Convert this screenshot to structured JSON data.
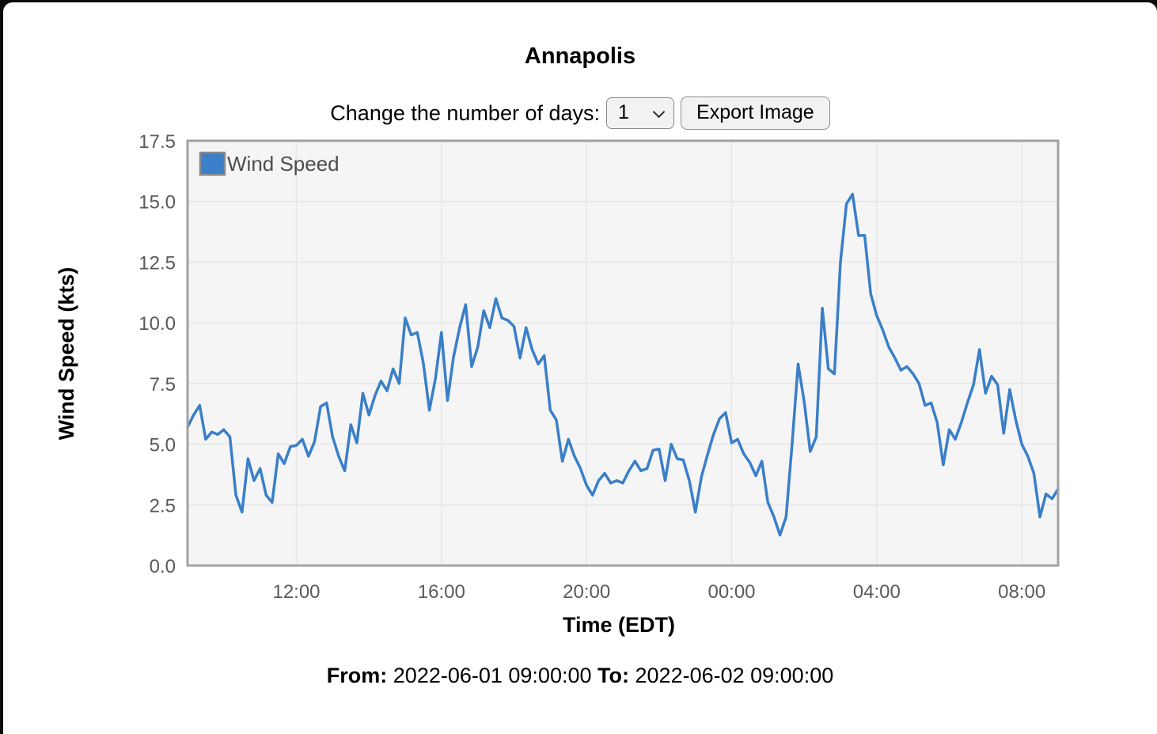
{
  "header": {
    "title": "Annapolis"
  },
  "controls": {
    "label": "Change the number of days:",
    "days_selected": "1",
    "export_button_label": "Export Image"
  },
  "footer": {
    "from_label": "From:",
    "from_value": "2022-06-01 09:00:00",
    "to_label": "To:",
    "to_value": "2022-06-02 09:00:00"
  },
  "colors": {
    "line": "#3a7fc8",
    "plot_background": "#f5f5f5",
    "grid": "#e7e7e7",
    "plot_border": "#a2a2a2",
    "tick_label": "#5a5a5a",
    "legend_text": "#4d4d4d",
    "legend_swatch_border": "#8a8a8a"
  },
  "chart_data": {
    "type": "line",
    "title": "Annapolis",
    "xlabel": "Time (EDT)",
    "ylabel": "Wind Speed (kts)",
    "legend": [
      "Wind Speed"
    ],
    "legend_position": "top-left",
    "grid": true,
    "ylim": [
      0,
      17.5
    ],
    "x_range_hours": 24,
    "y_ticks": [
      {
        "value": 17.5,
        "label": "17.5"
      },
      {
        "value": 15.0,
        "label": "15.0"
      },
      {
        "value": 12.5,
        "label": "12.5"
      },
      {
        "value": 10.0,
        "label": "10.0"
      },
      {
        "value": 7.5,
        "label": "7.5"
      },
      {
        "value": 5.0,
        "label": "5.0"
      },
      {
        "value": 2.5,
        "label": "2.5"
      },
      {
        "value": 0.0,
        "label": "0.0"
      }
    ],
    "x_ticks": [
      {
        "label": "12:00",
        "hour_offset": 3
      },
      {
        "label": "16:00",
        "hour_offset": 7
      },
      {
        "label": "20:00",
        "hour_offset": 11
      },
      {
        "label": "00:00",
        "hour_offset": 15
      },
      {
        "label": "04:00",
        "hour_offset": 19
      },
      {
        "label": "08:00",
        "hour_offset": 23
      }
    ],
    "series": [
      {
        "name": "Wind Speed",
        "unit": "kts",
        "start": "2022-06-01 09:00:00",
        "end": "2022-06-02 09:00:00",
        "interval_minutes": 10,
        "values": [
          5.7,
          6.2,
          6.6,
          5.2,
          5.5,
          5.4,
          5.6,
          5.3,
          2.9,
          2.2,
          4.4,
          3.5,
          4.0,
          2.9,
          2.6,
          4.6,
          4.2,
          4.9,
          4.95,
          5.2,
          4.5,
          5.1,
          6.55,
          6.7,
          5.3,
          4.5,
          3.9,
          5.8,
          5.05,
          7.1,
          6.2,
          7.0,
          7.6,
          7.2,
          8.1,
          7.5,
          10.2,
          9.5,
          9.6,
          8.35,
          6.4,
          7.7,
          9.6,
          6.8,
          8.6,
          9.8,
          10.75,
          8.2,
          9.0,
          10.5,
          9.8,
          11.0,
          10.2,
          10.1,
          9.85,
          8.55,
          9.8,
          8.9,
          8.3,
          8.65,
          6.4,
          6.0,
          4.3,
          5.2,
          4.5,
          4.0,
          3.3,
          2.9,
          3.5,
          3.8,
          3.4,
          3.5,
          3.4,
          3.9,
          4.3,
          3.9,
          4.0,
          4.75,
          4.8,
          3.5,
          5.0,
          4.4,
          4.35,
          3.5,
          2.2,
          3.65,
          4.55,
          5.4,
          6.05,
          6.3,
          5.05,
          5.2,
          4.6,
          4.25,
          3.7,
          4.3,
          2.6,
          2.0,
          1.25,
          2.0,
          5.0,
          8.3,
          6.75,
          4.7,
          5.3,
          10.6,
          8.1,
          7.9,
          12.5,
          14.9,
          15.3,
          13.6,
          13.6,
          11.2,
          10.3,
          9.7,
          9.0,
          8.55,
          8.05,
          8.2,
          7.9,
          7.5,
          6.6,
          6.7,
          5.9,
          4.15,
          5.6,
          5.2,
          5.9,
          6.7,
          7.45,
          8.9,
          7.1,
          7.8,
          7.45,
          5.45,
          7.25,
          6.0,
          5.0,
          4.5,
          3.8,
          2.0,
          2.95,
          2.75,
          3.15
        ]
      }
    ]
  }
}
